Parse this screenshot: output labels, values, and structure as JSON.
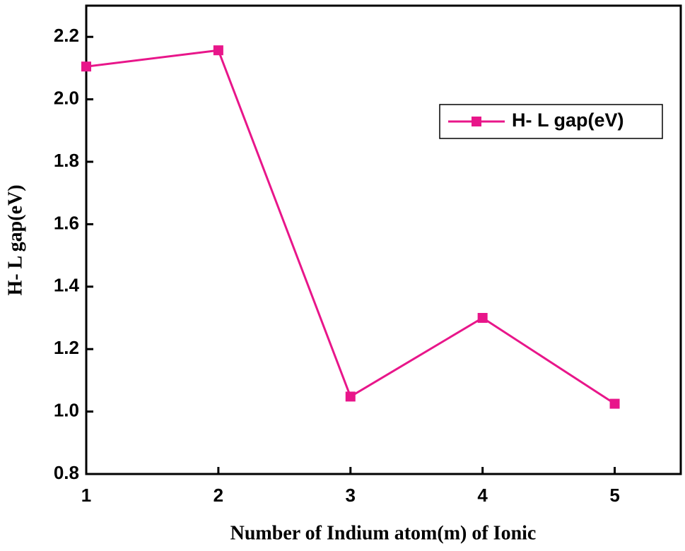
{
  "chart_data": {
    "type": "line",
    "x": [
      1,
      2,
      3,
      4,
      5
    ],
    "series": [
      {
        "name": "H- L gap(eV)",
        "color": "#e8168a",
        "values": [
          2.105,
          2.157,
          1.048,
          1.3,
          1.025
        ]
      }
    ],
    "xlabel": "Number of Indium atom(m) of Ionic",
    "ylabel": "H- L gap(eV)",
    "xlim": [
      1,
      5.5
    ],
    "xticks": [
      1,
      2,
      3,
      4,
      5
    ],
    "ylim": [
      0.8,
      2.3
    ],
    "yticks": [
      0.8,
      {
        "value": 1.0,
        "label": "1.0"
      },
      1.2,
      1.4,
      1.6,
      1.8,
      {
        "value": 2.0,
        "label": "2.0"
      },
      2.2
    ],
    "legend": "upper right"
  }
}
